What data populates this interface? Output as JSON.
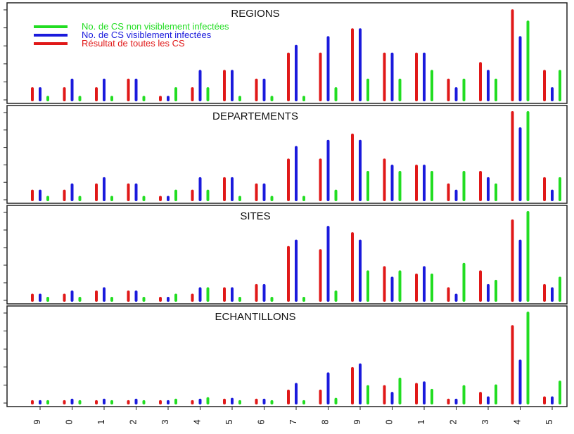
{
  "chart_data": {
    "type": "bar",
    "categories": [
      "9",
      "0",
      "1",
      "2",
      "3",
      "4",
      "5",
      "6",
      "7",
      "8",
      "9",
      "0",
      "1",
      "2",
      "3",
      "4",
      "5"
    ],
    "legend": {
      "placement": "top-left",
      "entries": [
        {
          "label": "No. de CS non visiblement infectées",
          "color": "#22dd22"
        },
        {
          "label": "No. de CS visiblement infectées",
          "color": "#1a1adc"
        },
        {
          "label": "Résultat de toutes les CS",
          "color": "#e01818"
        }
      ]
    },
    "series_colors": {
      "red": "#e01818",
      "blue": "#1a1adc",
      "green": "#22dd22"
    },
    "panels": [
      {
        "title": "REGIONS",
        "ylim": [
          0,
          5.2
        ],
        "red": [
          0.65,
          0.65,
          0.65,
          1.15,
          0.15,
          0.65,
          1.65,
          1.15,
          2.65,
          2.65,
          4.05,
          2.65,
          2.65,
          1.15,
          2.1,
          5.15,
          1.65
        ],
        "blue": [
          0.65,
          1.15,
          1.15,
          1.15,
          0.15,
          1.65,
          1.65,
          1.15,
          3.1,
          3.6,
          4.05,
          2.65,
          2.65,
          0.65,
          1.65,
          3.6,
          0.65
        ],
        "green": [
          0.15,
          0.15,
          0.15,
          0.15,
          0.65,
          0.65,
          0.15,
          0.15,
          0.15,
          0.65,
          1.15,
          1.15,
          1.65,
          1.15,
          1.15,
          4.5,
          1.65
        ]
      },
      {
        "title": "DEPARTEMENTS",
        "ylim": [
          0,
          7.0
        ],
        "red": [
          0.7,
          0.7,
          1.2,
          1.2,
          0.2,
          0.7,
          1.7,
          1.2,
          3.2,
          3.2,
          5.2,
          3.2,
          2.7,
          1.2,
          2.2,
          7.0,
          1.7
        ],
        "blue": [
          0.7,
          1.2,
          1.7,
          1.2,
          0.2,
          1.7,
          1.7,
          1.2,
          4.2,
          4.7,
          4.7,
          2.7,
          2.7,
          0.7,
          1.7,
          5.7,
          0.7
        ],
        "green": [
          0.2,
          0.2,
          0.2,
          0.2,
          0.7,
          0.7,
          0.2,
          0.2,
          0.2,
          0.7,
          2.2,
          2.2,
          2.2,
          2.2,
          1.2,
          7.0,
          1.7
        ]
      },
      {
        "title": "SITES",
        "ylim": [
          0,
          8.3
        ],
        "red": [
          0.5,
          0.5,
          0.8,
          0.8,
          0.2,
          0.5,
          1.1,
          1.4,
          5.0,
          4.7,
          6.3,
          3.1,
          2.4,
          1.1,
          2.7,
          7.5,
          1.4
        ],
        "blue": [
          0.5,
          0.8,
          1.1,
          0.8,
          0.2,
          1.1,
          1.1,
          1.4,
          5.6,
          6.9,
          5.6,
          2.1,
          3.1,
          0.5,
          1.4,
          5.6,
          1.1
        ],
        "green": [
          0.2,
          0.2,
          0.2,
          0.2,
          0.5,
          1.1,
          0.2,
          0.2,
          0.2,
          0.8,
          2.7,
          2.7,
          2.4,
          3.4,
          1.8,
          8.3,
          2.1
        ]
      },
      {
        "title": "ECHANTILLONS",
        "ylim": [
          0,
          12.0
        ],
        "red": [
          0.2,
          0.2,
          0.2,
          0.2,
          0.2,
          0.2,
          0.4,
          0.4,
          1.6,
          1.6,
          4.6,
          2.2,
          2.5,
          0.4,
          1.3,
          10.2,
          0.7
        ],
        "blue": [
          0.2,
          0.4,
          0.4,
          0.4,
          0.2,
          0.4,
          0.5,
          0.4,
          2.5,
          3.9,
          5.1,
          1.3,
          2.7,
          0.4,
          0.7,
          5.6,
          0.7
        ],
        "green": [
          0.2,
          0.2,
          0.2,
          0.2,
          0.4,
          0.6,
          0.2,
          0.2,
          0.2,
          0.5,
          2.2,
          3.2,
          1.7,
          2.2,
          2.3,
          12.0,
          2.8
        ]
      }
    ]
  }
}
